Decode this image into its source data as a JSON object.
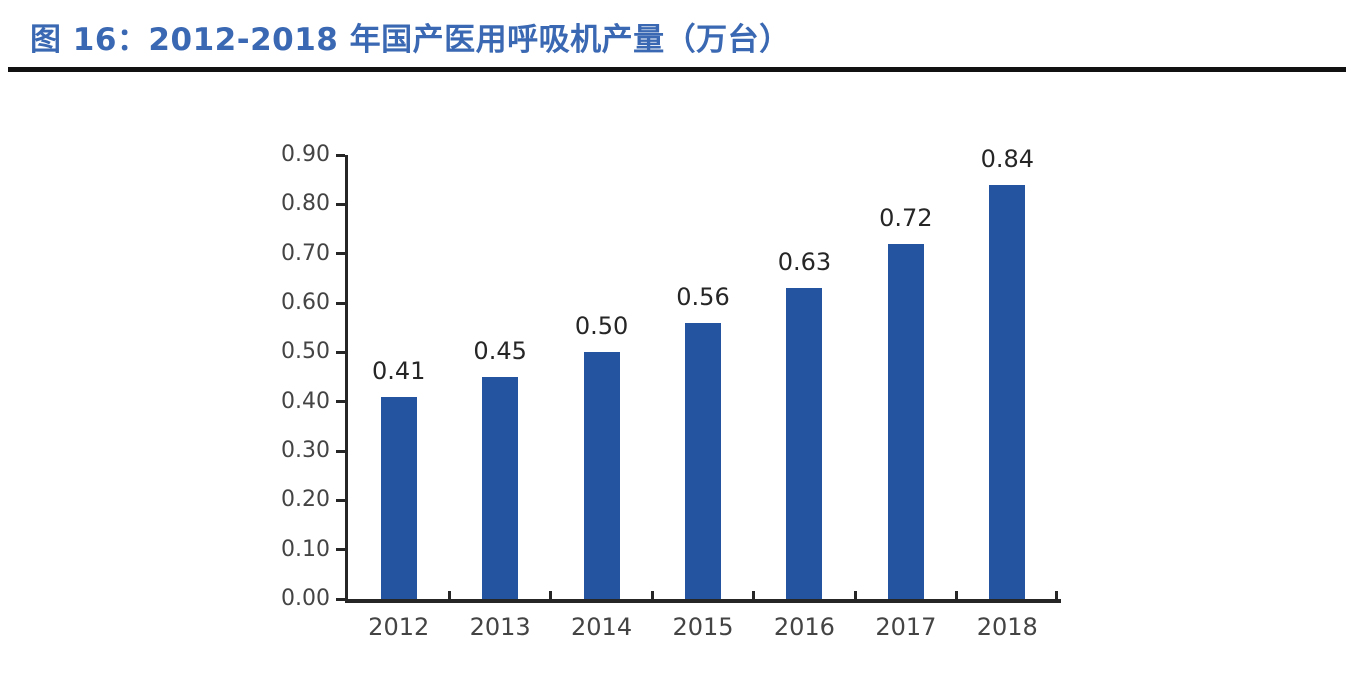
{
  "figure": {
    "title": "图 16：2012-2018 年国产医用呼吸机产量（万台）"
  },
  "colors": {
    "title_text": "#3A68B2",
    "title_rule": "#111111",
    "bar_fill": "#2454A0",
    "axis_line": "#262626",
    "tick_label": "#444444",
    "data_label": "#262626",
    "background": "#ffffff"
  },
  "chart_data": {
    "type": "bar",
    "title": "图 16：2012-2018 年国产医用呼吸机产量（万台）",
    "categories": [
      "2012",
      "2013",
      "2014",
      "2015",
      "2016",
      "2017",
      "2018"
    ],
    "values": [
      0.41,
      0.45,
      0.5,
      0.56,
      0.63,
      0.72,
      0.84
    ],
    "value_labels": [
      "0.41",
      "0.45",
      "0.50",
      "0.56",
      "0.63",
      "0.72",
      "0.84"
    ],
    "xlabel": "",
    "ylabel": "",
    "ylim": [
      0.0,
      0.9
    ],
    "ytick_step": 0.1,
    "ytick_labels": [
      "0.00",
      "0.10",
      "0.20",
      "0.30",
      "0.40",
      "0.50",
      "0.60",
      "0.70",
      "0.80",
      "0.90"
    ],
    "grid": false,
    "legend_position": "none",
    "unit_label": "万台"
  }
}
